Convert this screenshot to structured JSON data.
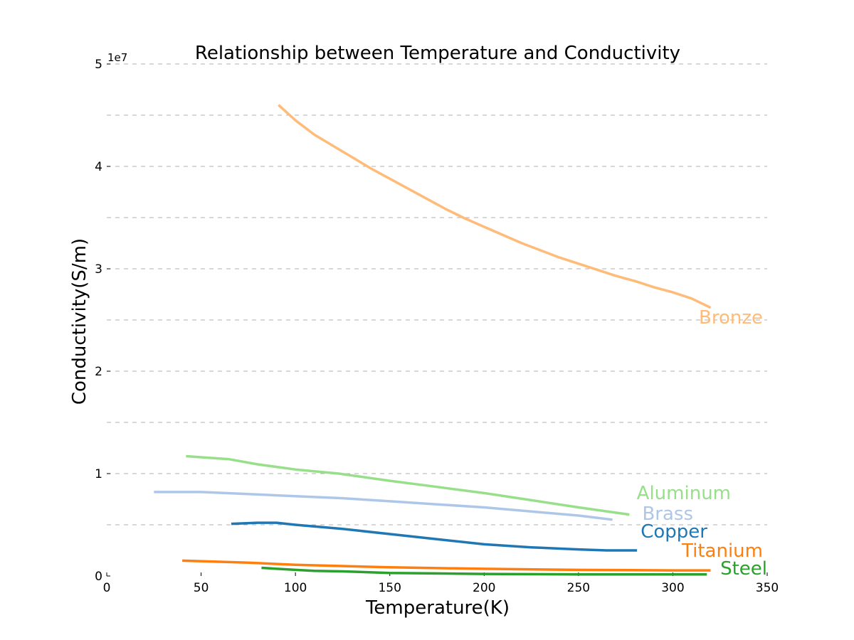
{
  "chart_data": {
    "type": "line",
    "title": "Relationship between Temperature and Conductivity",
    "xlabel": "Temperature(K)",
    "ylabel": "Conductivity(S/m)",
    "y_exponent_label": "1e7",
    "xlim": [
      0,
      350
    ],
    "ylim": [
      0,
      50000000
    ],
    "x_ticks": [
      0,
      50,
      100,
      150,
      200,
      250,
      300,
      350
    ],
    "x_tick_labels": [
      "0",
      "50",
      "100",
      "150",
      "200",
      "250",
      "300",
      "350"
    ],
    "y_ticks": [
      0,
      10000000,
      20000000,
      30000000,
      40000000,
      50000000
    ],
    "y_tick_labels": [
      "0",
      "1",
      "2",
      "3",
      "4",
      "5"
    ],
    "y_gridlines": [
      5000000,
      10000000,
      15000000,
      20000000,
      25000000,
      30000000,
      35000000,
      40000000,
      45000000,
      50000000
    ],
    "grid": "y-dashed",
    "legend": "inline-right",
    "series": [
      {
        "name": "Bronze",
        "color": "#ffbb78",
        "x": [
          91,
          100,
          110,
          120,
          130,
          140,
          150,
          160,
          170,
          180,
          190,
          200,
          210,
          220,
          230,
          240,
          250,
          260,
          270,
          280,
          290,
          300,
          310,
          320
        ],
        "y": [
          46000000,
          44500000,
          43100000,
          42000000,
          40900000,
          39800000,
          38800000,
          37800000,
          36800000,
          35800000,
          34900000,
          34100000,
          33300000,
          32500000,
          31800000,
          31100000,
          30500000,
          29900000,
          29300000,
          28800000,
          28200000,
          27700000,
          27100000,
          26200000
        ]
      },
      {
        "name": "Aluminum",
        "color": "#98df8a",
        "x": [
          42,
          50,
          65,
          80,
          100,
          123,
          150,
          175,
          200,
          225,
          250,
          277
        ],
        "y": [
          11700000,
          11600000,
          11400000,
          10900000,
          10400000,
          10000000,
          9300000,
          8700000,
          8100000,
          7400000,
          6700000,
          6000000
        ]
      },
      {
        "name": "Brass",
        "color": "#aec7e8",
        "x": [
          25,
          50,
          75,
          100,
          125,
          150,
          175,
          200,
          225,
          250,
          268
        ],
        "y": [
          8200000,
          8200000,
          8000000,
          7800000,
          7600000,
          7300000,
          7000000,
          6700000,
          6300000,
          5900000,
          5500000
        ],
        "labels_note": ""
      },
      {
        "name": "Copper",
        "color": "#1f77b4",
        "x": [
          66,
          80,
          90,
          100,
          125,
          150,
          175,
          200,
          225,
          250,
          265,
          281
        ],
        "y": [
          5100000,
          5200000,
          5200000,
          5000000,
          4600000,
          4100000,
          3600000,
          3100000,
          2800000,
          2600000,
          2500000,
          2500000
        ]
      },
      {
        "name": "Titanium",
        "color": "#ff7f0e",
        "x": [
          40,
          75,
          100,
          150,
          200,
          250,
          300,
          320
        ],
        "y": [
          1500000,
          1300000,
          1100000,
          850000,
          700000,
          600000,
          550000,
          550000
        ]
      },
      {
        "name": "Steel",
        "color": "#2ca02c",
        "x": [
          82,
          100,
          110,
          125,
          150,
          175,
          200,
          250,
          300,
          318
        ],
        "y": [
          800000,
          600000,
          500000,
          450000,
          300000,
          250000,
          200000,
          150000,
          150000,
          150000
        ]
      }
    ]
  }
}
